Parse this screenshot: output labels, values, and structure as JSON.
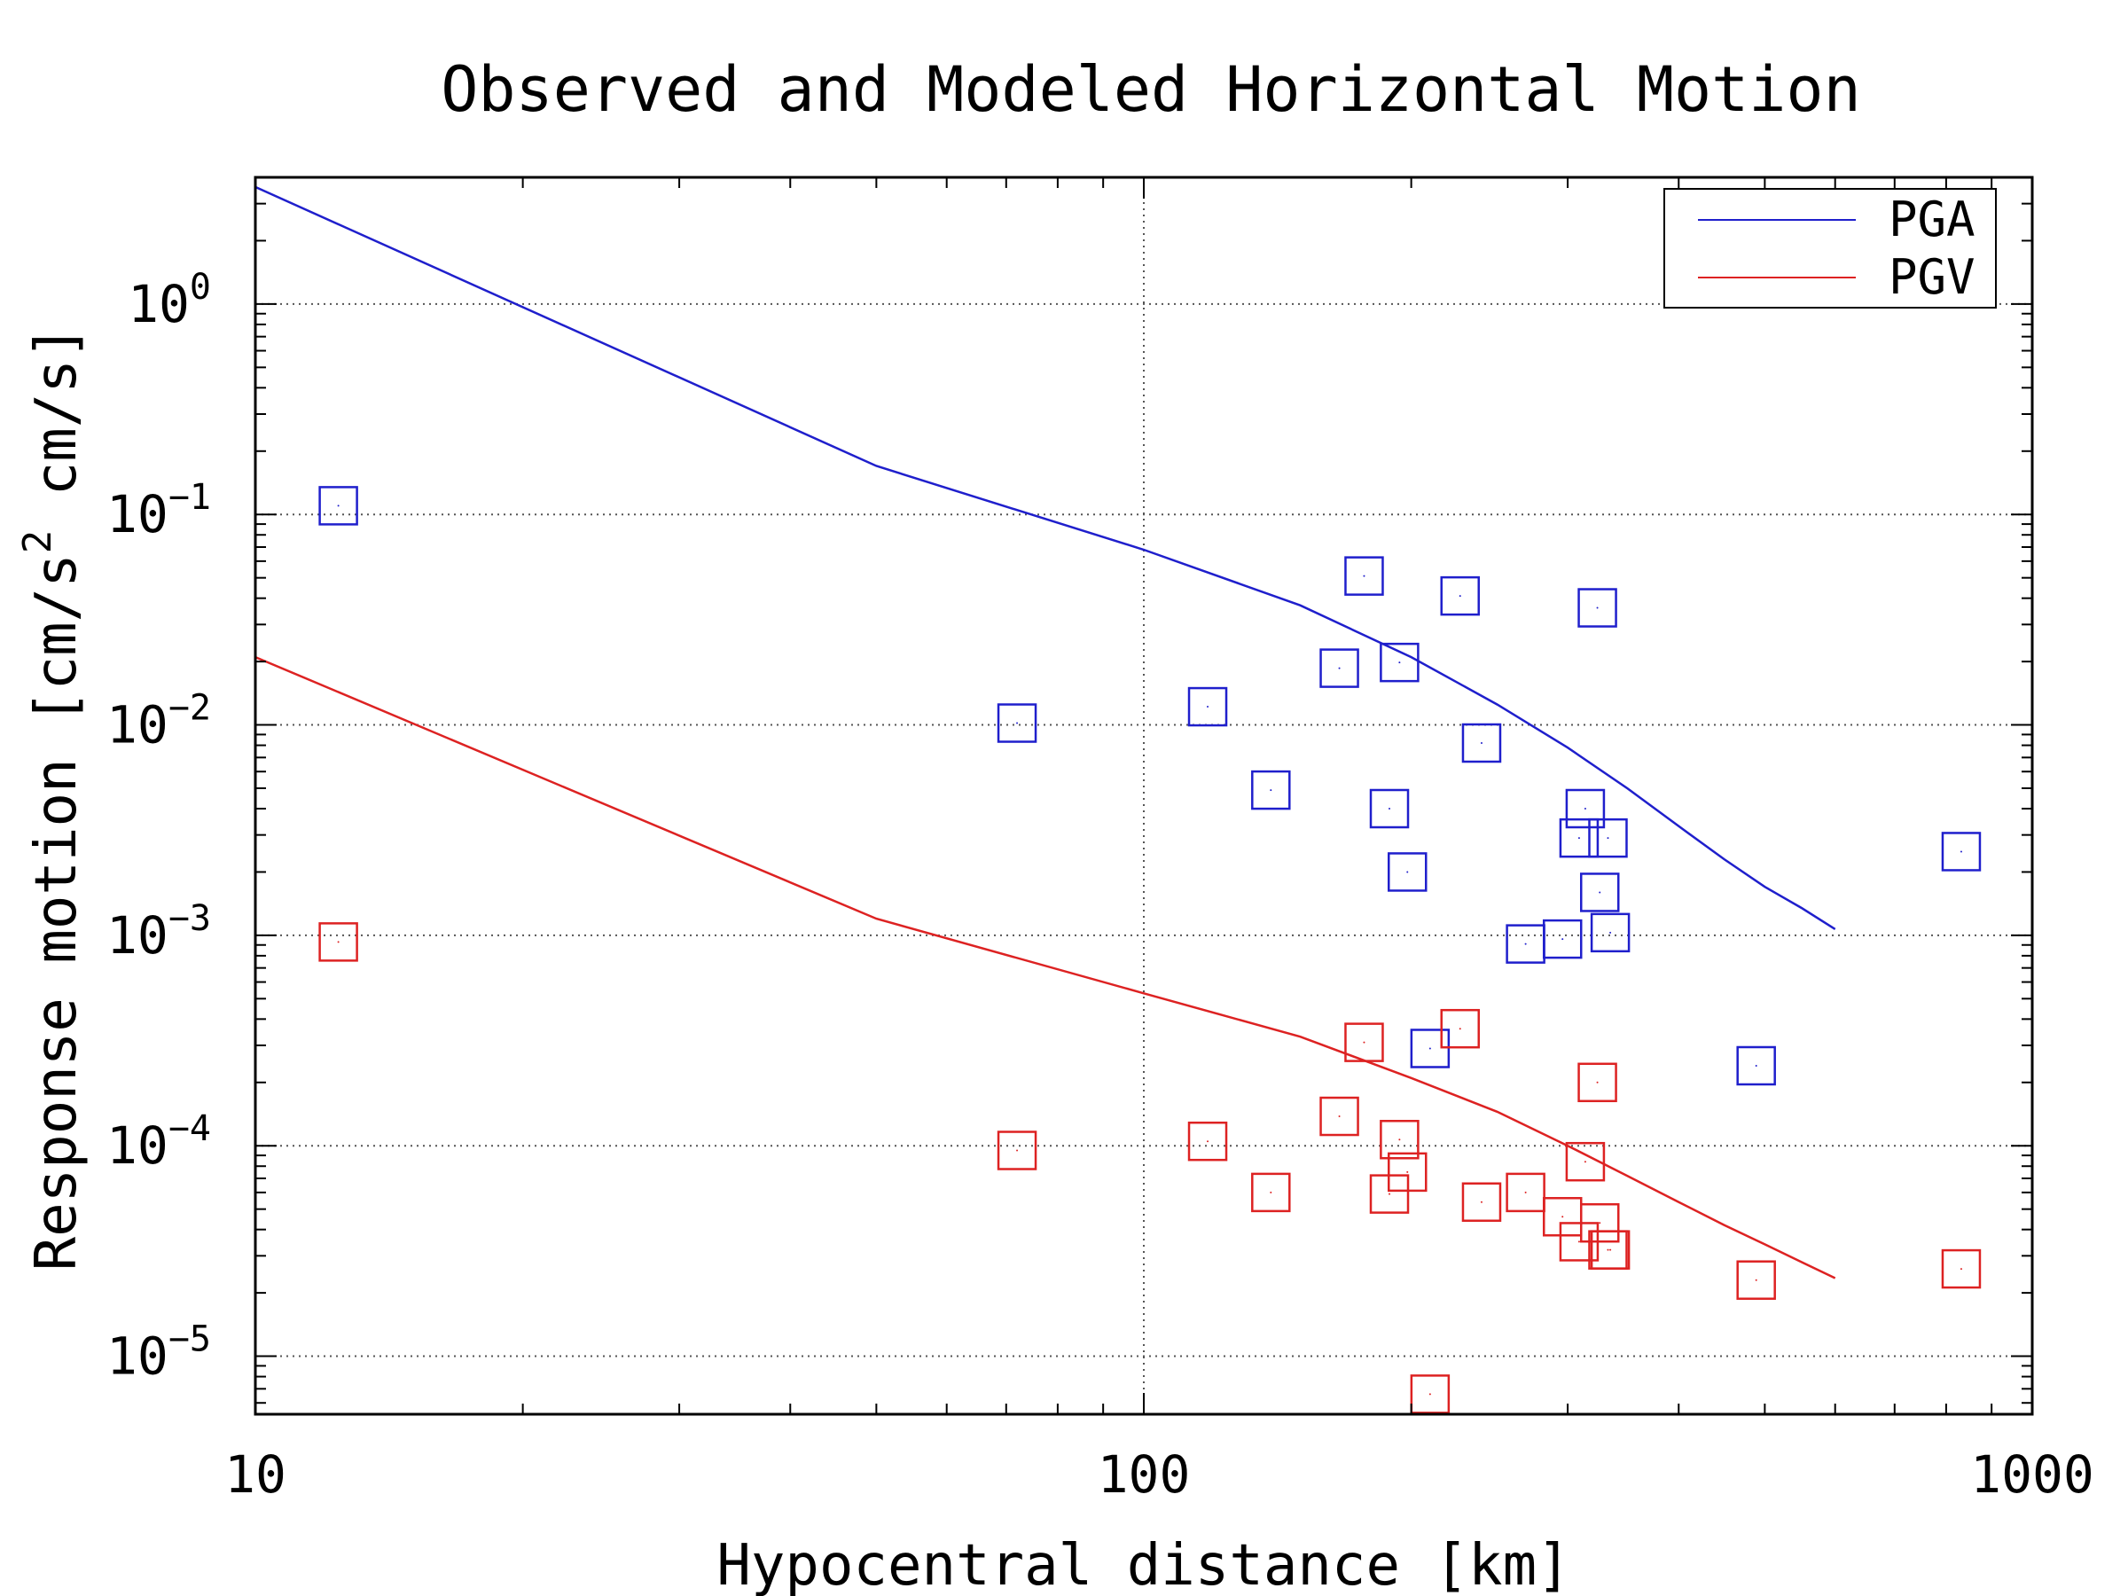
{
  "chart_data": {
    "type": "scatter",
    "title": "Observed and Modeled Horizontal Motion",
    "xlabel": "Hypocentral distance [km]",
    "ylabel": "Response motion [cm/s² cm/s]",
    "ylabel_parts": [
      "Response motion [cm/s",
      "2",
      " cm/s]"
    ],
    "xscale": "log",
    "yscale": "log",
    "xlim": [
      10,
      1000
    ],
    "ylim": [
      5.3e-06,
      4.0
    ],
    "x_ticks": [
      {
        "value": 10,
        "label": "10"
      },
      {
        "value": 100,
        "label": "100"
      },
      {
        "value": 1000,
        "label": "1000"
      }
    ],
    "y_ticks": [
      {
        "value": 1,
        "base": "10",
        "exp": "0"
      },
      {
        "value": 0.1,
        "base": "10",
        "exp": "−1"
      },
      {
        "value": 0.01,
        "base": "10",
        "exp": "−2"
      },
      {
        "value": 0.001,
        "base": "10",
        "exp": "−3"
      },
      {
        "value": 0.0001,
        "base": "10",
        "exp": "−4"
      },
      {
        "value": 1e-05,
        "base": "10",
        "exp": "−5"
      }
    ],
    "grid": true,
    "legend": {
      "position": "top-right"
    },
    "colors": {
      "pga": "#1f1fcc",
      "pgv": "#dd2222",
      "axis": "#000000",
      "grid": "#555555"
    },
    "series": [
      {
        "name": "PGA",
        "kind": "line",
        "color": "#1f1fcc",
        "x": [
          10,
          50,
          100,
          150,
          200,
          250,
          300,
          350,
          400,
          450,
          500,
          550,
          600
        ],
        "y": [
          3.6,
          0.17,
          0.068,
          0.037,
          0.021,
          0.0125,
          0.0078,
          0.005,
          0.0033,
          0.0023,
          0.0017,
          0.00135,
          0.00107
        ]
      },
      {
        "name": "PGV",
        "kind": "line",
        "color": "#dd2222",
        "x": [
          10,
          50,
          100,
          150,
          200,
          250,
          300,
          350,
          400,
          450,
          500,
          550,
          600
        ],
        "y": [
          0.021,
          0.0012,
          0.00053,
          0.00033,
          0.00021,
          0.000145,
          0.0001,
          7.2e-05,
          5.4e-05,
          4.2e-05,
          3.4e-05,
          2.8e-05,
          2.35e-05
        ]
      },
      {
        "kind": "markers",
        "color": "#1f1fcc",
        "x": [
          12.4,
          72,
          118,
          139,
          166,
          177,
          189,
          194,
          198,
          210,
          227,
          240,
          269,
          296,
          309,
          314,
          324,
          326,
          333,
          335,
          489,
          832
        ],
        "y": [
          0.11,
          0.0102,
          0.0122,
          0.0049,
          0.0186,
          0.051,
          0.004,
          0.0198,
          0.002,
          0.00029,
          0.041,
          0.0082,
          0.00091,
          0.00096,
          0.0029,
          0.004,
          0.036,
          0.0016,
          0.0029,
          0.00103,
          0.00024,
          0.0025
        ]
      },
      {
        "kind": "markers",
        "color": "#dd2222",
        "x": [
          12.4,
          72,
          118,
          139,
          166,
          177,
          189,
          194,
          198,
          210,
          227,
          240,
          269,
          296,
          309,
          314,
          324,
          326,
          333,
          335,
          489,
          832
        ],
        "y": [
          0.00093,
          9.5e-05,
          0.000105,
          6e-05,
          0.000138,
          0.00031,
          5.9e-05,
          0.000107,
          7.5e-05,
          6.6e-06,
          0.00036,
          5.4e-05,
          6e-05,
          4.6e-05,
          3.5e-05,
          8.4e-05,
          0.0002,
          4.3e-05,
          3.2e-05,
          3.2e-05,
          2.3e-05,
          2.6e-05
        ]
      }
    ]
  }
}
